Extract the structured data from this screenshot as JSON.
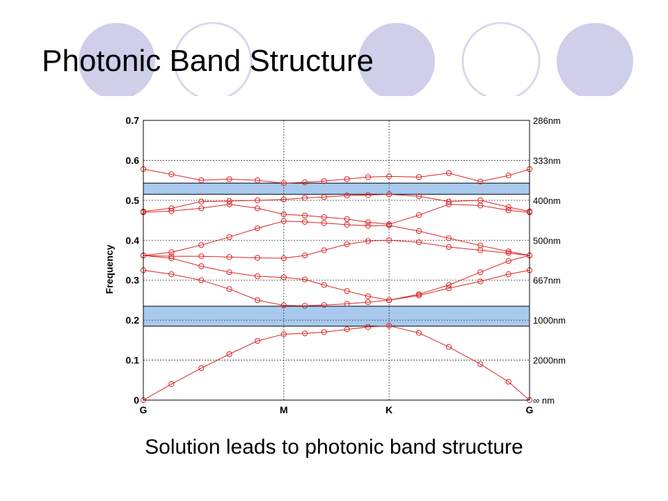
{
  "slide": {
    "title": "Photonic Band Structure",
    "caption": "Solution leads to photonic band structure",
    "decor_colors": {
      "filled": "#cfcfea",
      "ring": "#d8d8ec"
    }
  },
  "chart_data": {
    "type": "line",
    "title": "",
    "xlabel": "",
    "ylabel": "Frequency",
    "x_ticks": [
      {
        "label": "G",
        "value": 0
      },
      {
        "label": "M",
        "value": 8
      },
      {
        "label": "K",
        "value": 14
      },
      {
        "label": "G",
        "value": 22
      }
    ],
    "xlim": [
      0,
      22
    ],
    "ylim": [
      0,
      0.7
    ],
    "y_ticks": [
      0,
      0.1,
      0.2,
      0.3,
      0.4,
      0.5,
      0.6,
      0.7
    ],
    "y_tick_labels": [
      "0",
      "0.1",
      "0.2",
      "0.3",
      "0.4",
      "0.5",
      "0.6",
      "0.7"
    ],
    "right_axis_labels": [
      {
        "value": 0.7,
        "label": "286nm"
      },
      {
        "value": 0.6,
        "label": "333nm"
      },
      {
        "value": 0.5,
        "label": "400nm"
      },
      {
        "value": 0.4,
        "label": "500nm"
      },
      {
        "value": 0.3,
        "label": "667nm"
      },
      {
        "value": 0.2,
        "label": "1000nm"
      },
      {
        "value": 0.1,
        "label": "2000nm"
      },
      {
        "value": 0,
        "label": "∞ nm"
      }
    ],
    "grid": true,
    "band_gaps": [
      {
        "from": 0.185,
        "to": 0.235
      },
      {
        "from": 0.515,
        "to": 0.543
      }
    ],
    "line_color": "#dd2222",
    "gap_color": "#a9c9ee",
    "series": [
      {
        "x": [
          0,
          1.6,
          3.3,
          4.9,
          6.5,
          8,
          9.2,
          10.3,
          11.6,
          12.8,
          14,
          15.7,
          17.4,
          19.2,
          20.8,
          22
        ],
        "values": [
          0,
          0.04,
          0.08,
          0.115,
          0.148,
          0.165,
          0.167,
          0.17,
          0.177,
          0.183,
          0.186,
          0.168,
          0.133,
          0.09,
          0.046,
          0
        ]
      },
      {
        "x": [
          0,
          1.6,
          3.3,
          4.9,
          6.5,
          8,
          9.2,
          10.3,
          11.6,
          12.8,
          14,
          15.7,
          17.4,
          19.2,
          20.8,
          22
        ],
        "values": [
          0.325,
          0.315,
          0.3,
          0.278,
          0.25,
          0.237,
          0.236,
          0.238,
          0.241,
          0.245,
          0.25,
          0.262,
          0.28,
          0.297,
          0.315,
          0.325
        ]
      },
      {
        "x": [
          0,
          1.6,
          3.3,
          4.9,
          6.5,
          8,
          9.2,
          10.3,
          11.6,
          12.8,
          14,
          15.7,
          17.4,
          19.2,
          20.8,
          22
        ],
        "values": [
          0.362,
          0.355,
          0.335,
          0.32,
          0.31,
          0.307,
          0.302,
          0.288,
          0.273,
          0.26,
          0.25,
          0.265,
          0.288,
          0.32,
          0.348,
          0.362
        ]
      },
      {
        "x": [
          0,
          1.6,
          3.3,
          4.9,
          6.5,
          8,
          9.2,
          10.3,
          11.6,
          12.8,
          14,
          15.7,
          17.4,
          19.2,
          20.8,
          22
        ],
        "values": [
          0.362,
          0.36,
          0.36,
          0.358,
          0.356,
          0.355,
          0.362,
          0.375,
          0.39,
          0.398,
          0.4,
          0.395,
          0.383,
          0.375,
          0.368,
          0.362
        ]
      },
      {
        "x": [
          0,
          1.6,
          3.3,
          4.9,
          6.5,
          8,
          9.2,
          10.3,
          11.6,
          12.8,
          14,
          15.7,
          17.4,
          19.2,
          20.8,
          22
        ],
        "values": [
          0.362,
          0.37,
          0.388,
          0.408,
          0.43,
          0.448,
          0.446,
          0.443,
          0.439,
          0.436,
          0.437,
          0.423,
          0.405,
          0.387,
          0.372,
          0.362
        ]
      },
      {
        "x": [
          0,
          1.6,
          3.3,
          4.9,
          6.5,
          8,
          9.2,
          10.3,
          11.6,
          12.8,
          14,
          15.7,
          17.4,
          19.2,
          20.8,
          22
        ],
        "values": [
          0.47,
          0.473,
          0.48,
          0.49,
          0.48,
          0.465,
          0.462,
          0.458,
          0.453,
          0.445,
          0.44,
          0.463,
          0.49,
          0.487,
          0.475,
          0.47
        ]
      },
      {
        "x": [
          0,
          1.6,
          3.3,
          4.9,
          6.5,
          8,
          9.2,
          10.3,
          11.6,
          12.8,
          14,
          15.7,
          17.4,
          19.2,
          20.8,
          22
        ],
        "values": [
          0.472,
          0.48,
          0.497,
          0.498,
          0.5,
          0.502,
          0.506,
          0.508,
          0.512,
          0.513,
          0.515,
          0.51,
          0.497,
          0.5,
          0.483,
          0.472
        ]
      },
      {
        "x": [
          0,
          1.6,
          3.3,
          4.9,
          6.5,
          8,
          9.2,
          10.3,
          11.6,
          12.8,
          14,
          15.7,
          17.4,
          19.2,
          20.8,
          22
        ],
        "values": [
          0.578,
          0.565,
          0.55,
          0.553,
          0.55,
          0.543,
          0.545,
          0.548,
          0.553,
          0.558,
          0.56,
          0.558,
          0.568,
          0.547,
          0.562,
          0.578
        ]
      }
    ]
  }
}
